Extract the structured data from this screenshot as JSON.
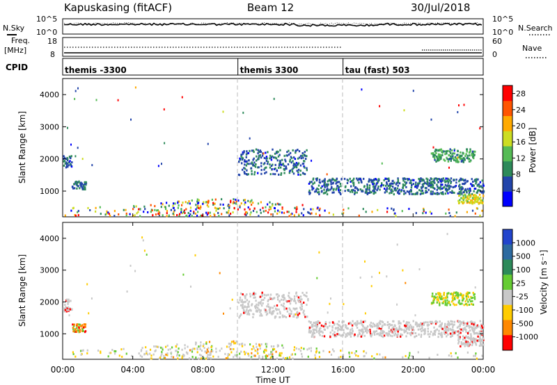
{
  "header": {
    "station": "Kapuskasing (fitACF)",
    "beam": "Beam 12",
    "date": "30/Jul/2018"
  },
  "noise_panel": {
    "left_label": "N.Sky",
    "left_ticks": [
      "10^5",
      "10^0"
    ],
    "right_label": "N.Search",
    "right_ticks": [
      "10^5",
      "10^0"
    ]
  },
  "freq_panel": {
    "left_label_1": "Freq.",
    "left_label_2": "[MHz]",
    "left_ticks": [
      "18",
      "8"
    ],
    "right_label": "Nave",
    "right_ticks": [
      "60",
      "0"
    ]
  },
  "cpid": {
    "label": "CPID",
    "segments": [
      {
        "name": "themis -3300",
        "start_hour": 0
      },
      {
        "name": "themis 3300",
        "start_hour": 10
      },
      {
        "name": "tau (fast) 503",
        "start_hour": 16
      }
    ]
  },
  "chart_data": [
    {
      "type": "heatmap",
      "panel": "power",
      "ylabel": "Slant Range [km]",
      "xlabel": "",
      "ylim": [
        200,
        4500
      ],
      "yticks": [
        "1000",
        "2000",
        "3000",
        "4000"
      ],
      "xlim_hours": [
        0,
        24
      ],
      "xticks": [
        "00:00",
        "04:00",
        "08:00",
        "12:00",
        "16:00",
        "20:00",
        "00:00"
      ],
      "colorbar": {
        "label": "Power [dB]",
        "ticks": [
          "4",
          "8",
          "12",
          "16",
          "20",
          "24",
          "28"
        ],
        "range": [
          0,
          30
        ],
        "colors": [
          "#0000ff",
          "#2244aa",
          "#2d8a5a",
          "#55bb55",
          "#ccdd22",
          "#ffaa00",
          "#ff5500",
          "#ff0000"
        ]
      },
      "features": [
        {
          "x_hours": [
            0,
            0.5
          ],
          "range_km": [
            1700,
            2100
          ],
          "power_db": 6
        },
        {
          "x_hours": [
            0.5,
            1.3
          ],
          "range_km": [
            1050,
            1300
          ],
          "power_db": 6
        },
        {
          "x_hours": [
            10,
            14
          ],
          "range_km": [
            1500,
            2300
          ],
          "power_db": 6
        },
        {
          "x_hours": [
            14,
            24
          ],
          "range_km": [
            900,
            1400
          ],
          "power_db": 6
        },
        {
          "x_hours": [
            21,
            23.5
          ],
          "range_km": [
            1900,
            2300
          ],
          "power_db": 10
        },
        {
          "x_hours": [
            22.5,
            24
          ],
          "range_km": [
            600,
            900
          ],
          "power_db": 18
        }
      ]
    },
    {
      "type": "heatmap",
      "panel": "velocity",
      "ylabel": "Slant Range [km]",
      "xlabel": "Time UT",
      "ylim": [
        200,
        4500
      ],
      "yticks": [
        "1000",
        "2000",
        "3000",
        "4000"
      ],
      "xlim_hours": [
        0,
        24
      ],
      "xticks": [
        "00:00",
        "04:00",
        "08:00",
        "12:00",
        "16:00",
        "20:00",
        "00:00"
      ],
      "colorbar": {
        "label": "Velocity [m s⁻¹]",
        "ticks": [
          "1000",
          "500",
          "100",
          "25",
          "-25",
          "-100",
          "-500",
          "-1000"
        ],
        "colors": [
          "#2244cc",
          "#2d6aa0",
          "#2d8a5a",
          "#66cc33",
          "#c8c8c8",
          "#ffcc00",
          "#ff8800",
          "#ff0000"
        ]
      },
      "features": [
        {
          "x_hours": [
            0,
            0.5
          ],
          "range_km": [
            1700,
            2100
          ],
          "velocity": 0
        },
        {
          "x_hours": [
            0.5,
            1.3
          ],
          "range_km": [
            1050,
            1300
          ],
          "velocity": -150
        },
        {
          "x_hours": [
            10,
            14
          ],
          "range_km": [
            1500,
            2300
          ],
          "velocity": 0
        },
        {
          "x_hours": [
            14,
            24
          ],
          "range_km": [
            900,
            1400
          ],
          "velocity": 0
        },
        {
          "x_hours": [
            21,
            23.5
          ],
          "range_km": [
            1900,
            2300
          ],
          "velocity": 100
        },
        {
          "x_hours": [
            22.5,
            24
          ],
          "range_km": [
            600,
            900
          ],
          "velocity": 0
        }
      ]
    }
  ]
}
